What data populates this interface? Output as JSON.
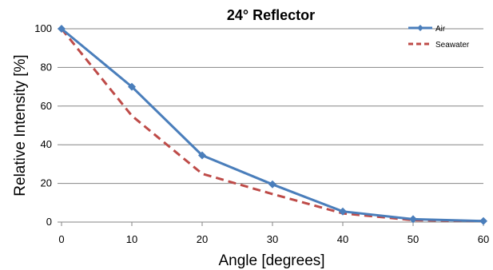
{
  "chart_data": {
    "type": "line",
    "title": "24° Reflector",
    "xlabel": "Angle [degrees]",
    "ylabel": "Relative Intensity [%]",
    "x": [
      0,
      10,
      20,
      30,
      40,
      50,
      60
    ],
    "xlim": [
      0,
      60
    ],
    "ylim": [
      0,
      100
    ],
    "xticks": [
      0,
      10,
      20,
      30,
      40,
      50,
      60
    ],
    "yticks": [
      0,
      20,
      40,
      60,
      80,
      100
    ],
    "grid": true,
    "legend_position": "top-right",
    "series": [
      {
        "name": "Air",
        "values": [
          100,
          70,
          34.5,
          19.5,
          5.5,
          1.5,
          0.5
        ],
        "color": "#4a7ebb",
        "style": "solid-diamond"
      },
      {
        "name": "Seawater",
        "values": [
          100,
          55,
          25,
          14.5,
          4.5,
          1,
          0.5
        ],
        "color": "#be4b48",
        "style": "dashed"
      }
    ]
  }
}
